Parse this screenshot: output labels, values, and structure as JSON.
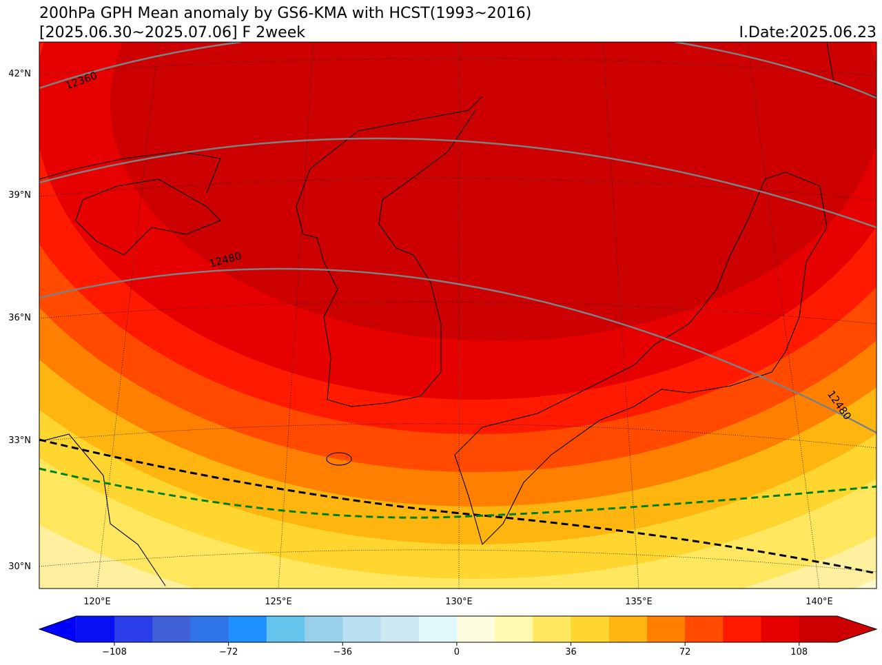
{
  "title": "200hPa GPH Mean anomaly by GS6-KMA with HCST(1993~2016)",
  "subtitle": "[2025.06.30~2025.07.06] F 2week",
  "init_date": "I.Date:2025.06.23",
  "lat_labels": [
    "42°N",
    "39°N",
    "36°N",
    "33°N",
    "30°N"
  ],
  "lon_labels": [
    "120°E",
    "125°E",
    "130°E",
    "135°E",
    "140°E"
  ],
  "contour_labels": [
    12360,
    12480,
    12480
  ],
  "colorbar": {
    "lim": [
      -120,
      120
    ],
    "colors": [
      "#0a10f5",
      "#2b3de8",
      "#4060d8",
      "#2f75e8",
      "#1e90ff",
      "#64c4ec",
      "#98d0ea",
      "#b8e0f0",
      "#cce8f0",
      "#e0f8fa",
      "#fffde0",
      "#fffab0",
      "#ffe860",
      "#ffd630",
      "#ffb510",
      "#ff8000",
      "#ff4a00",
      "#ff1a00",
      "#e60000",
      "#cc0000"
    ],
    "extend_colors": [
      "#0000ff",
      "#cc0000"
    ],
    "ticks": [
      {
        "value": -108,
        "label": "−108"
      },
      {
        "value": -72,
        "label": "−72"
      },
      {
        "value": -36,
        "label": "−36"
      },
      0,
      36,
      72,
      108
    ]
  }
}
